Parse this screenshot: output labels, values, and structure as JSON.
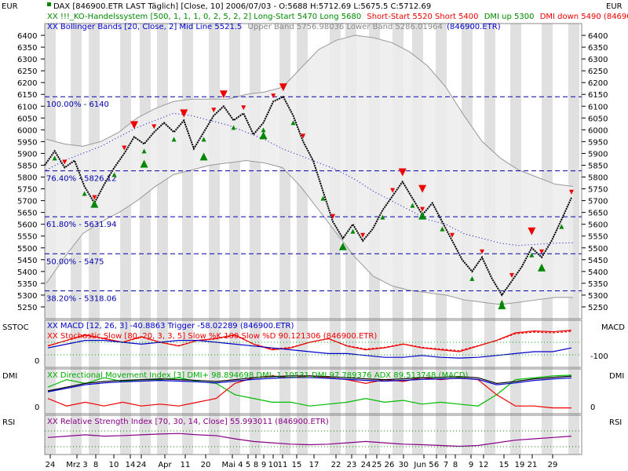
{
  "header": {
    "left_unit": "EUR",
    "right_unit": "EUR",
    "line1": "DAX [846900.ETR LAST Täglich] [Close, 10] 2006/07/03 - O:5688 H:5712.69 L:5675.5 C:5712.69",
    "line2_green": "XX !!!_KO-Handelssystem [500, 1, 1, 1, 0, 2, 5, 2, 2] Long-Start 5470 Long 5680",
    "line2_red": "Short-Start 5520 Short 5400",
    "line2_green2": "DMI up 5300",
    "line2_red2": "DMI down 5490 (846900.ETR)",
    "line3_blue": "XX Bollinger Bands [20, Close, 2] Mid Line 5521.5",
    "line3_gray": "Upper Band 5756.98036 Lower Band 5286.01964",
    "line3_blue2": "(846900.ETR)"
  },
  "chart_data": {
    "type": "line",
    "title": "DAX [846900.ETR LAST Täglich] [Close, 10] 2006/07/03",
    "y_axis_unit": "EUR",
    "ylim": [
      5200,
      6450
    ],
    "y_ticks": [
      5250,
      5300,
      5350,
      5400,
      5450,
      5500,
      5550,
      5600,
      5650,
      5700,
      5750,
      5800,
      5850,
      5900,
      5950,
      6000,
      6050,
      6100,
      6150,
      6200,
      6250,
      6300,
      6350,
      6400
    ],
    "ohlc": {
      "open": 5688,
      "high": 5712.69,
      "low": 5675.5,
      "close": 5712.69,
      "date": "2006/07/03"
    },
    "price_series": [
      {
        "x": "Feb 22",
        "y": 5850
      },
      {
        "x": "Feb 24",
        "y": 5910
      },
      {
        "x": "Feb 28",
        "y": 5840
      },
      {
        "x": "Mar 2",
        "y": 5870
      },
      {
        "x": "Mar 6",
        "y": 5760
      },
      {
        "x": "Mar 8",
        "y": 5690
      },
      {
        "x": "Mar 10",
        "y": 5770
      },
      {
        "x": "Mar 14",
        "y": 5840
      },
      {
        "x": "Mar 16",
        "y": 5900
      },
      {
        "x": "Mar 21",
        "y": 5970
      },
      {
        "x": "Mar 24",
        "y": 5940
      },
      {
        "x": "Mar 28",
        "y": 5990
      },
      {
        "x": "Mar 31",
        "y": 6030
      },
      {
        "x": "Apr 4",
        "y": 5990
      },
      {
        "x": "Apr 6",
        "y": 6040
      },
      {
        "x": "Apr 11",
        "y": 5920
      },
      {
        "x": "Apr 13",
        "y": 5990
      },
      {
        "x": "Apr 19",
        "y": 6060
      },
      {
        "x": "Apr 21",
        "y": 6100
      },
      {
        "x": "Apr 25",
        "y": 6040
      },
      {
        "x": "Apr 27",
        "y": 6070
      },
      {
        "x": "May 2",
        "y": 5980
      },
      {
        "x": "May 4",
        "y": 6030
      },
      {
        "x": "May 8",
        "y": 6120
      },
      {
        "x": "May 9",
        "y": 6140
      },
      {
        "x": "May 11",
        "y": 6060
      },
      {
        "x": "May 15",
        "y": 5950
      },
      {
        "x": "May 17",
        "y": 5870
      },
      {
        "x": "May 19",
        "y": 5740
      },
      {
        "x": "May 23",
        "y": 5610
      },
      {
        "x": "May 24",
        "y": 5540
      },
      {
        "x": "May 26",
        "y": 5600
      },
      {
        "x": "May 30",
        "y": 5530
      },
      {
        "x": "Jun 1",
        "y": 5580
      },
      {
        "x": "Jun 5",
        "y": 5660
      },
      {
        "x": "Jun 7",
        "y": 5720
      },
      {
        "x": "Jun 9",
        "y": 5780
      },
      {
        "x": "Jun 13",
        "y": 5710
      },
      {
        "x": "Jun 15",
        "y": 5640
      },
      {
        "x": "Jun 19",
        "y": 5690
      },
      {
        "x": "Jun 21",
        "y": 5610
      },
      {
        "x": "Jun 23",
        "y": 5530
      },
      {
        "x": "Jun 26",
        "y": 5450
      },
      {
        "x": "Jun 27",
        "y": 5400
      },
      {
        "x": "Jun 28",
        "y": 5460
      },
      {
        "x": "Jun 30",
        "y": 5370
      },
      {
        "x": "Jul 3",
        "y": 5300
      },
      {
        "x": "Jul 5",
        "y": 5360
      },
      {
        "x": "Jul 7",
        "y": 5420
      },
      {
        "x": "Jul 10",
        "y": 5500
      },
      {
        "x": "Jul 12",
        "y": 5460
      },
      {
        "x": "Jul 14",
        "y": 5530
      },
      {
        "x": "Jul 17",
        "y": 5620
      },
      {
        "x": "Jul 19",
        "y": 5712.69
      }
    ],
    "bollinger_upper": [
      5960,
      5940,
      5930,
      5950,
      5990,
      6050,
      6090,
      6120,
      6130,
      6130,
      6130,
      6150,
      6160,
      6180,
      6260,
      6340,
      6380,
      6400,
      6390,
      6370,
      6330,
      6270,
      6180,
      6060,
      5950,
      5880,
      5830,
      5800,
      5770,
      5760
    ],
    "bollinger_lower": [
      5350,
      5460,
      5560,
      5610,
      5650,
      5700,
      5760,
      5810,
      5830,
      5850,
      5860,
      5870,
      5860,
      5840,
      5760,
      5660,
      5560,
      5460,
      5380,
      5340,
      5320,
      5310,
      5300,
      5280,
      5270,
      5260,
      5270,
      5280,
      5290,
      5290
    ],
    "bollinger_mid": [
      5830,
      5870,
      5900,
      5930,
      5970,
      6010,
      6040,
      6070,
      6060,
      6040,
      6020,
      5990,
      5960,
      5920,
      5890,
      5860,
      5830,
      5790,
      5740,
      5700,
      5660,
      5620,
      5600,
      5560,
      5540,
      5520,
      5510,
      5515,
      5520,
      5521.5
    ],
    "fib_levels": [
      {
        "label": "100.00% - 6140",
        "value": 6140
      },
      {
        "label": "76.40% - 5826.12",
        "value": 5826.12
      },
      {
        "label": "61.80% - 5631.94",
        "value": 5631.94
      },
      {
        "label": "50.00% - 5475",
        "value": 5475
      },
      {
        "label": "38.20% - 5318.06",
        "value": 5318.06
      }
    ],
    "signals_up_big": [
      {
        "x": "Mar 8",
        "y": 5720
      },
      {
        "x": "Mar 24",
        "y": 5890
      },
      {
        "x": "Apr 13",
        "y": 5920
      },
      {
        "x": "May 4",
        "y": 6010
      },
      {
        "x": "May 24",
        "y": 5540
      },
      {
        "x": "Jun 15",
        "y": 5670
      },
      {
        "x": "Jul 3",
        "y": 5290
      },
      {
        "x": "Jul 12",
        "y": 5450
      }
    ],
    "signals_down_big": [
      {
        "x": "Mar 21",
        "y": 5980
      },
      {
        "x": "Apr 6",
        "y": 6030
      },
      {
        "x": "Apr 21",
        "y": 6110
      },
      {
        "x": "May 9",
        "y": 6140
      },
      {
        "x": "Jun 9",
        "y": 5780
      },
      {
        "x": "Jun 15",
        "y": 5710
      },
      {
        "x": "Jul 10",
        "y": 5530
      }
    ],
    "x_ticks": [
      "24",
      "Mrz 3",
      "8",
      "10",
      "14",
      "24",
      "Apr",
      "11",
      "20",
      "Mai 4",
      "5",
      "8",
      "9",
      "10",
      "11",
      "15",
      "17",
      "22",
      "23",
      "24",
      "25",
      "26",
      "30",
      "Jun 5",
      "6",
      "7",
      "8",
      "9",
      "12",
      "15",
      "19",
      "21",
      "29"
    ],
    "panels": [
      {
        "name": "SSTOC",
        "right_label": "MACD",
        "left_tick": "0",
        "right_tick": "-100",
        "legend_macd": "XX MACD [12, 26, 3] -40.8863 Trigger -58.02289 (846900.ETR)",
        "legend_sto": "XX Stochastic Slow [80, 20, 3, 3, 5] Slow %K 100 Slow %D 90.121306 (846900.ETR)"
      },
      {
        "name": "DMI",
        "right_label": "DMI",
        "left_tick": "0",
        "right_tick": "0",
        "legend": "XX Directional Movement Index [3] DMI+ 98.894698 DMI- 1.10531 DMI 97.789376 ADX 89.513748 (MACD)"
      },
      {
        "name": "RSI",
        "right_label": "RSI",
        "legend": "XX Relative Strength Index [70, 30, 14, Close] 55.993011 (846900.ETR)"
      }
    ]
  },
  "colors": {
    "price": "#000000",
    "bands": "#999999",
    "band_fill": "#ececec",
    "mid": "#0000cc",
    "fib": "#0000aa",
    "up": "#008800",
    "down": "#ee0000",
    "shade": "#d8d8d8",
    "macd": "#0000cc",
    "trigger": "#0000ff",
    "sto": "#ee0000",
    "dmi_plus": "#00bb00",
    "dmi_minus": "#ee0000",
    "adx": "#000000",
    "rsi": "#880088"
  }
}
